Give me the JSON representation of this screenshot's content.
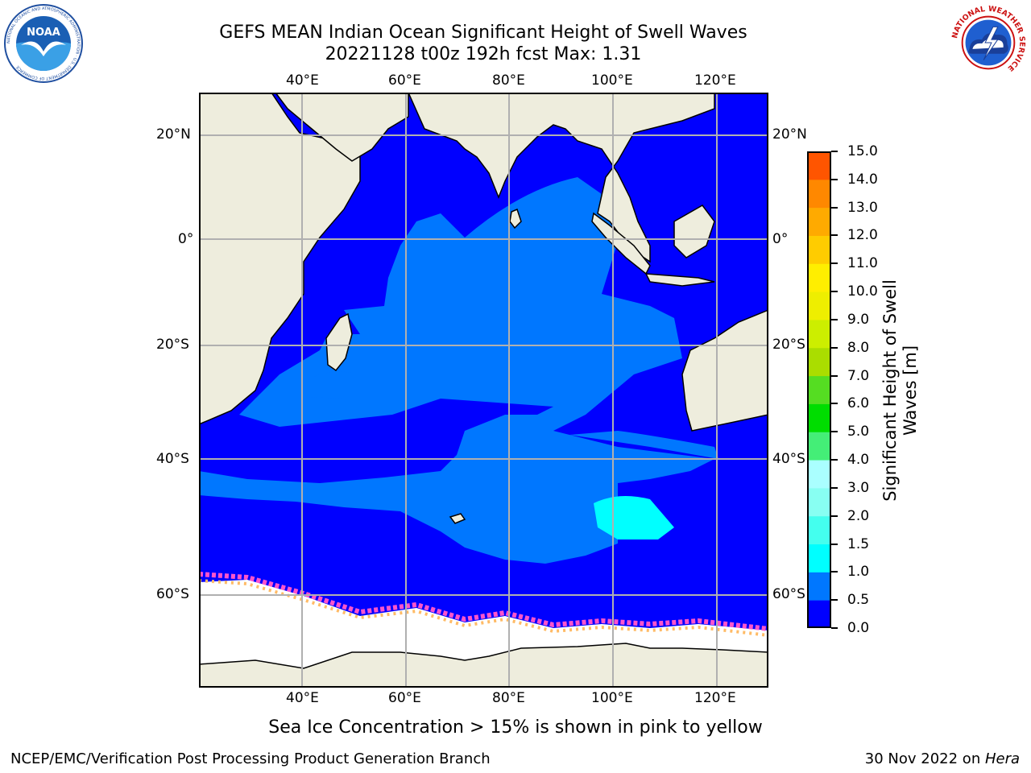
{
  "header": {
    "title_line1": "GEFS MEAN Indian Ocean Significant Height of Swell Waves",
    "title_line2": "20221128 t00z 192h fcst   Max: 1.31"
  },
  "logos": {
    "left": {
      "name": "NOAA",
      "text": "NOAA",
      "ring_text": "NATIONAL OCEANIC AND ATMOSPHERIC ADMINISTRATION · U.S. DEPARTMENT OF COMMERCE"
    },
    "right": {
      "name": "National Weather Service",
      "ring_text": "NATIONAL WEATHER SERVICE"
    }
  },
  "map": {
    "lon_ticks_top": [
      "40°E",
      "60°E",
      "80°E",
      "100°E",
      "120°E"
    ],
    "lon_ticks_bottom": [
      "40°E",
      "60°E",
      "80°E",
      "100°E",
      "120°E"
    ],
    "lat_ticks_left": [
      "20°N",
      "0°",
      "20°S",
      "40°S",
      "60°S"
    ],
    "lat_ticks_right": [
      "20°N",
      "0°",
      "20°S",
      "40°S",
      "60°S"
    ],
    "colors": {
      "land": "#eeeddd",
      "sea_ice": "#ffffff",
      "swell_0_0.5": "#0000ff",
      "swell_0.5_1.0": "#0077ff",
      "swell_1.0_1.5": "#00ffff",
      "grid": "#b0b0b0"
    },
    "grid": true
  },
  "colorbar": {
    "label_line1": "Significant Height of Swell",
    "label_line2": "Waves [m]",
    "ticks": [
      "0.0",
      "0.5",
      "1.0",
      "1.5",
      "2.0",
      "3.0",
      "4.0",
      "5.0",
      "6.0",
      "7.0",
      "8.0",
      "9.0",
      "10.0",
      "11.0",
      "12.0",
      "13.0",
      "14.0",
      "15.0"
    ],
    "colors": [
      "#0000ff",
      "#0077ff",
      "#00ffff",
      "#44ffee",
      "#88fff2",
      "#aaffff",
      "#44ee77",
      "#00dd00",
      "#55dd22",
      "#aadd00",
      "#ccee00",
      "#eeee00",
      "#ffee00",
      "#ffcc00",
      "#ffaa00",
      "#ff8800",
      "#ff5500",
      "#ff2200",
      "#ff0000"
    ]
  },
  "footer": {
    "note": "Sea Ice Concentration > 15% is shown in pink to yellow",
    "credit_left": "NCEP/EMC/Verification Post Processing Product Generation Branch",
    "credit_right_date": "30 Nov 2022 on ",
    "credit_right_machine": "Hera"
  }
}
